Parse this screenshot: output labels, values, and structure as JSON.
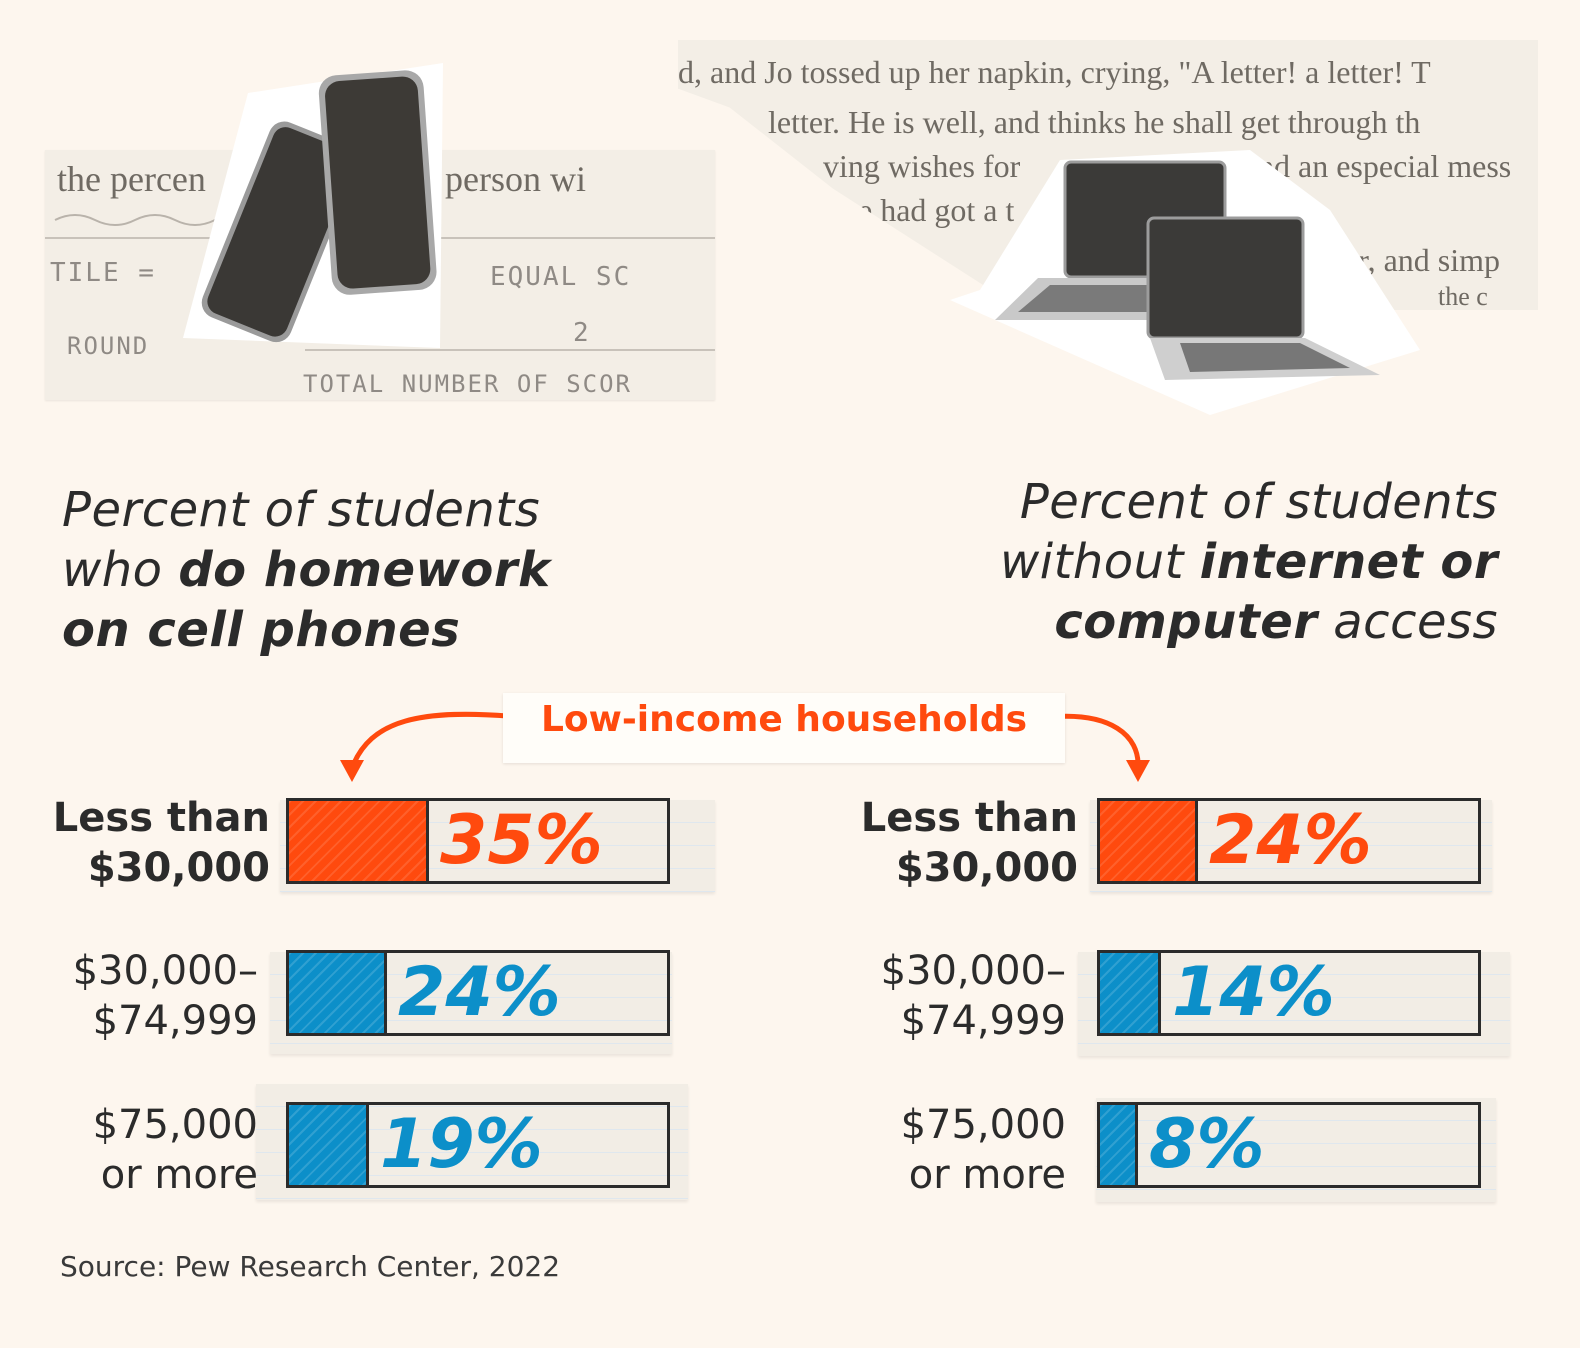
{
  "colors": {
    "low_income": "#ff4a0e",
    "other": "#0c8fc9",
    "ink": "#2b2b2b",
    "background": "#fdf6ee"
  },
  "decor": {
    "left_paper": {
      "text_line": "the percen",
      "text_line_right": "person wi",
      "hand_1": "TILE  =",
      "hand_2": "EQUAL  SC",
      "hand_3": "ROUND",
      "hand_4": "2",
      "hand_5": "TOTAL NUMBER OF SCOR"
    },
    "right_paper": {
      "line_1": "d, and Jo tossed up her napkin, crying, \"A letter! a letter! T",
      "line_2": "letter. He is well, and thinks he shall get through th",
      "line_3": "ving wishes for",
      "line_3b": "nd an especial mess",
      "line_4": "e had got a t",
      "line_5": "ger, and simp",
      "line_6": "the c"
    },
    "phones_icon": "smartphones-image",
    "laptops_icon": "laptops-image"
  },
  "left": {
    "heading_line1": "Percent of students",
    "heading_line2_plain": "who ",
    "heading_line2_em": "do homework",
    "heading_line3_em": "on cell phones"
  },
  "right": {
    "heading_line1": "Percent of students",
    "heading_line2_plain": "without ",
    "heading_line2_em": "internet or",
    "heading_line3_em": "computer",
    "heading_line3_plain": " access"
  },
  "callout": {
    "label": "Low-income households"
  },
  "categories": [
    {
      "line1": "Less than",
      "line2": "$30,000"
    },
    {
      "line1": "$30,000–",
      "line2": "$74,999"
    },
    {
      "line1": "$75,000",
      "line2": "or more"
    }
  ],
  "chart_data": [
    {
      "type": "bar",
      "orientation": "horizontal",
      "categories": [
        "Less than $30,000",
        "$30,000–$74,999",
        "$75,000 or more"
      ],
      "values": [
        35,
        24,
        19
      ],
      "value_labels": [
        "35%",
        "24%",
        "19%"
      ],
      "unit": "%",
      "title": "Percent of students who do homework on cell phones",
      "xlim": [
        0,
        100
      ],
      "grid": false,
      "highlight_category": "Less than $30,000"
    },
    {
      "type": "bar",
      "orientation": "horizontal",
      "categories": [
        "Less than $30,000",
        "$30,000–$74,999",
        "$75,000 or more"
      ],
      "values": [
        24,
        14,
        8
      ],
      "value_labels": [
        "24%",
        "14%",
        "8%"
      ],
      "unit": "%",
      "title": "Percent of students without internet or computer access",
      "xlim": [
        0,
        100
      ],
      "grid": false,
      "highlight_category": "Less than $30,000"
    }
  ],
  "source": "Source: Pew Research Center, 2022"
}
